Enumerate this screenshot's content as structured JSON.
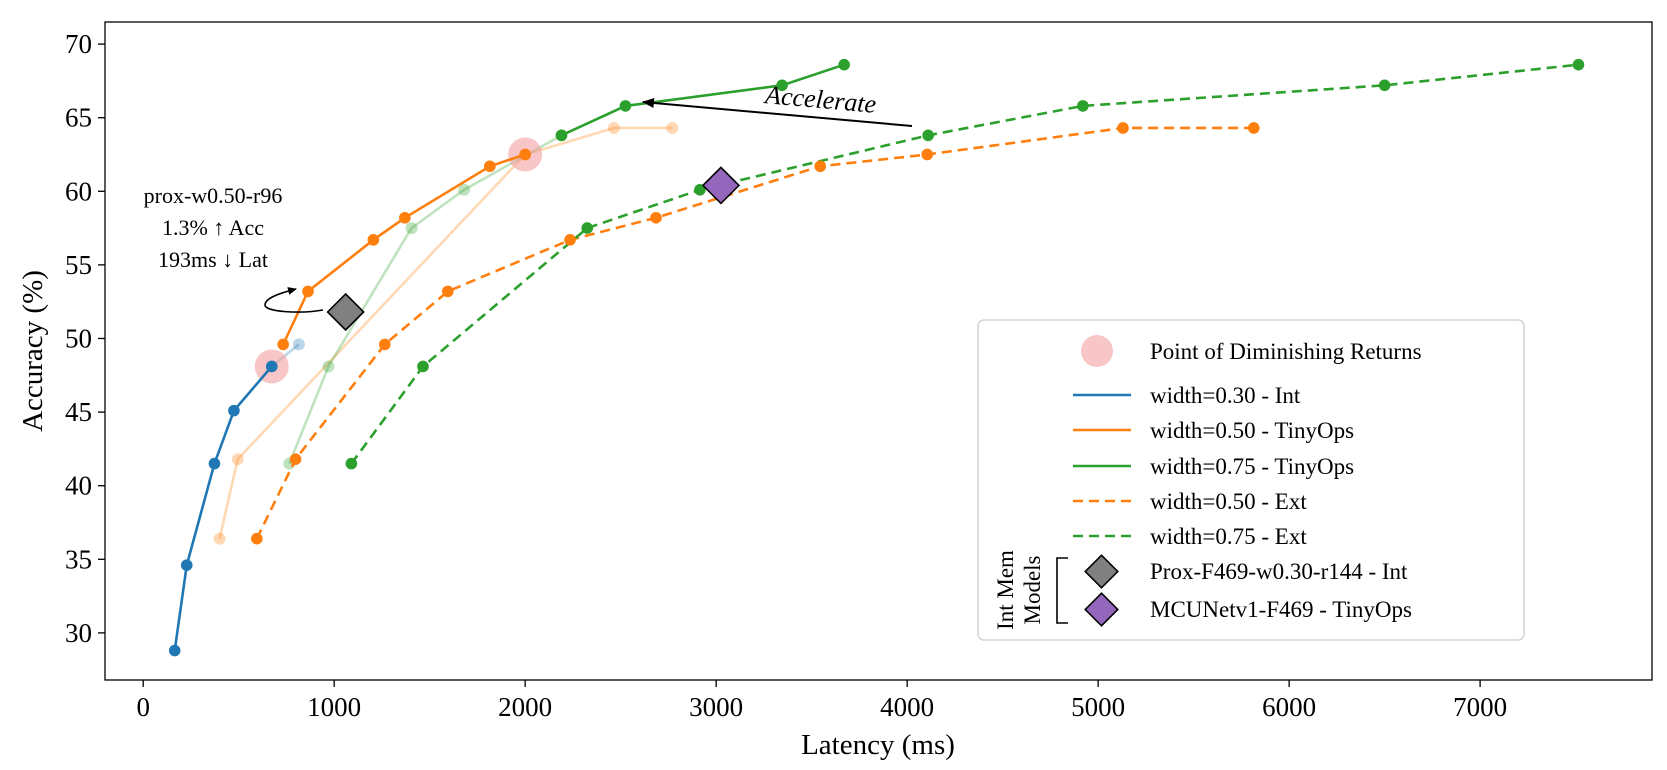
{
  "chart_data": {
    "type": "line",
    "title": "",
    "xlabel": "Latency (ms)",
    "ylabel": "Accuracy (%)",
    "xlim": [
      -200,
      7900
    ],
    "ylim": [
      26.8,
      71.5
    ],
    "xticks": [
      0,
      1000,
      2000,
      3000,
      4000,
      5000,
      6000,
      7000
    ],
    "yticks": [
      30,
      35,
      40,
      45,
      50,
      55,
      60,
      65,
      70
    ],
    "grid": false,
    "legend_position": "lower-right",
    "colors": {
      "blue": "#1f77b4",
      "orange": "#ff7f0e",
      "green": "#2ca02c",
      "diminishing": "#f4a0a0",
      "prox_marker": "#808080",
      "mcunet_marker": "#9467bd"
    },
    "series": [
      {
        "name": "width=0.30 - Int",
        "color": "#1f77b4",
        "style": "solid",
        "x": [
          165,
          228,
          373,
          475,
          673
        ],
        "y": [
          28.8,
          34.6,
          41.5,
          45.1,
          48.1
        ]
      },
      {
        "name": "width=0.50 - TinyOps",
        "color": "#ff7f0e",
        "style": "solid",
        "x": [
          733,
          863,
          1205,
          1370,
          1815,
          2000
        ],
        "y": [
          49.6,
          53.2,
          56.7,
          58.2,
          61.7,
          62.5
        ]
      },
      {
        "name": "width=0.75 - TinyOps",
        "color": "#2ca02c",
        "style": "solid",
        "x": [
          2190,
          2525,
          3345,
          3670
        ],
        "y": [
          63.8,
          65.8,
          67.2,
          68.6
        ]
      },
      {
        "name": "width=0.50 - Ext",
        "color": "#ff7f0e",
        "style": "dashed",
        "x": [
          595,
          798,
          1265,
          1595,
          2235,
          2685,
          3545,
          4105,
          5130,
          5815
        ],
        "y": [
          36.4,
          41.8,
          49.6,
          53.2,
          56.7,
          58.2,
          61.7,
          62.5,
          64.3,
          64.3
        ]
      },
      {
        "name": "width=0.75 - Ext",
        "color": "#2ca02c",
        "style": "dashed",
        "x": [
          1090,
          1465,
          2325,
          2915,
          4110,
          4920,
          6500,
          7515
        ],
        "y": [
          41.5,
          48.1,
          57.5,
          60.1,
          63.8,
          65.8,
          67.2,
          68.6
        ]
      }
    ],
    "faded_series": [
      {
        "color": "#1f77b4",
        "x": [
          673,
          815
        ],
        "y": [
          48.1,
          49.6
        ]
      },
      {
        "color": "#ff7f0e",
        "x": [
          400,
          495,
          2000,
          2465,
          2770
        ],
        "y": [
          36.4,
          41.8,
          62.5,
          64.3,
          64.3
        ]
      },
      {
        "color": "#2ca02c",
        "x": [
          765,
          970,
          1405,
          1680,
          2190
        ],
        "y": [
          41.5,
          48.1,
          57.5,
          60.1,
          63.8
        ]
      }
    ],
    "diminishing_points": [
      {
        "x": 673,
        "y": 48.1
      },
      {
        "x": 2000,
        "y": 62.5
      }
    ],
    "int_mem_models": [
      {
        "name": "Prox-F469-w0.30-r144 - Int",
        "x": 1060,
        "y": 51.8,
        "color": "#808080"
      },
      {
        "name": "MCUNetv1-F469 - TinyOps",
        "x": 3025,
        "y": 60.4,
        "color": "#9467bd"
      }
    ],
    "annotations": {
      "proxy_lines": [
        "prox-w0.50-r96",
        "1.3% ↑ Acc",
        "193ms ↓ Lat"
      ],
      "accelerate": "Accelerate"
    },
    "legend": {
      "diminishing_label": "Point of Diminishing Returns",
      "group_label_line1": "Int Mem",
      "group_label_line2": "Models"
    }
  }
}
